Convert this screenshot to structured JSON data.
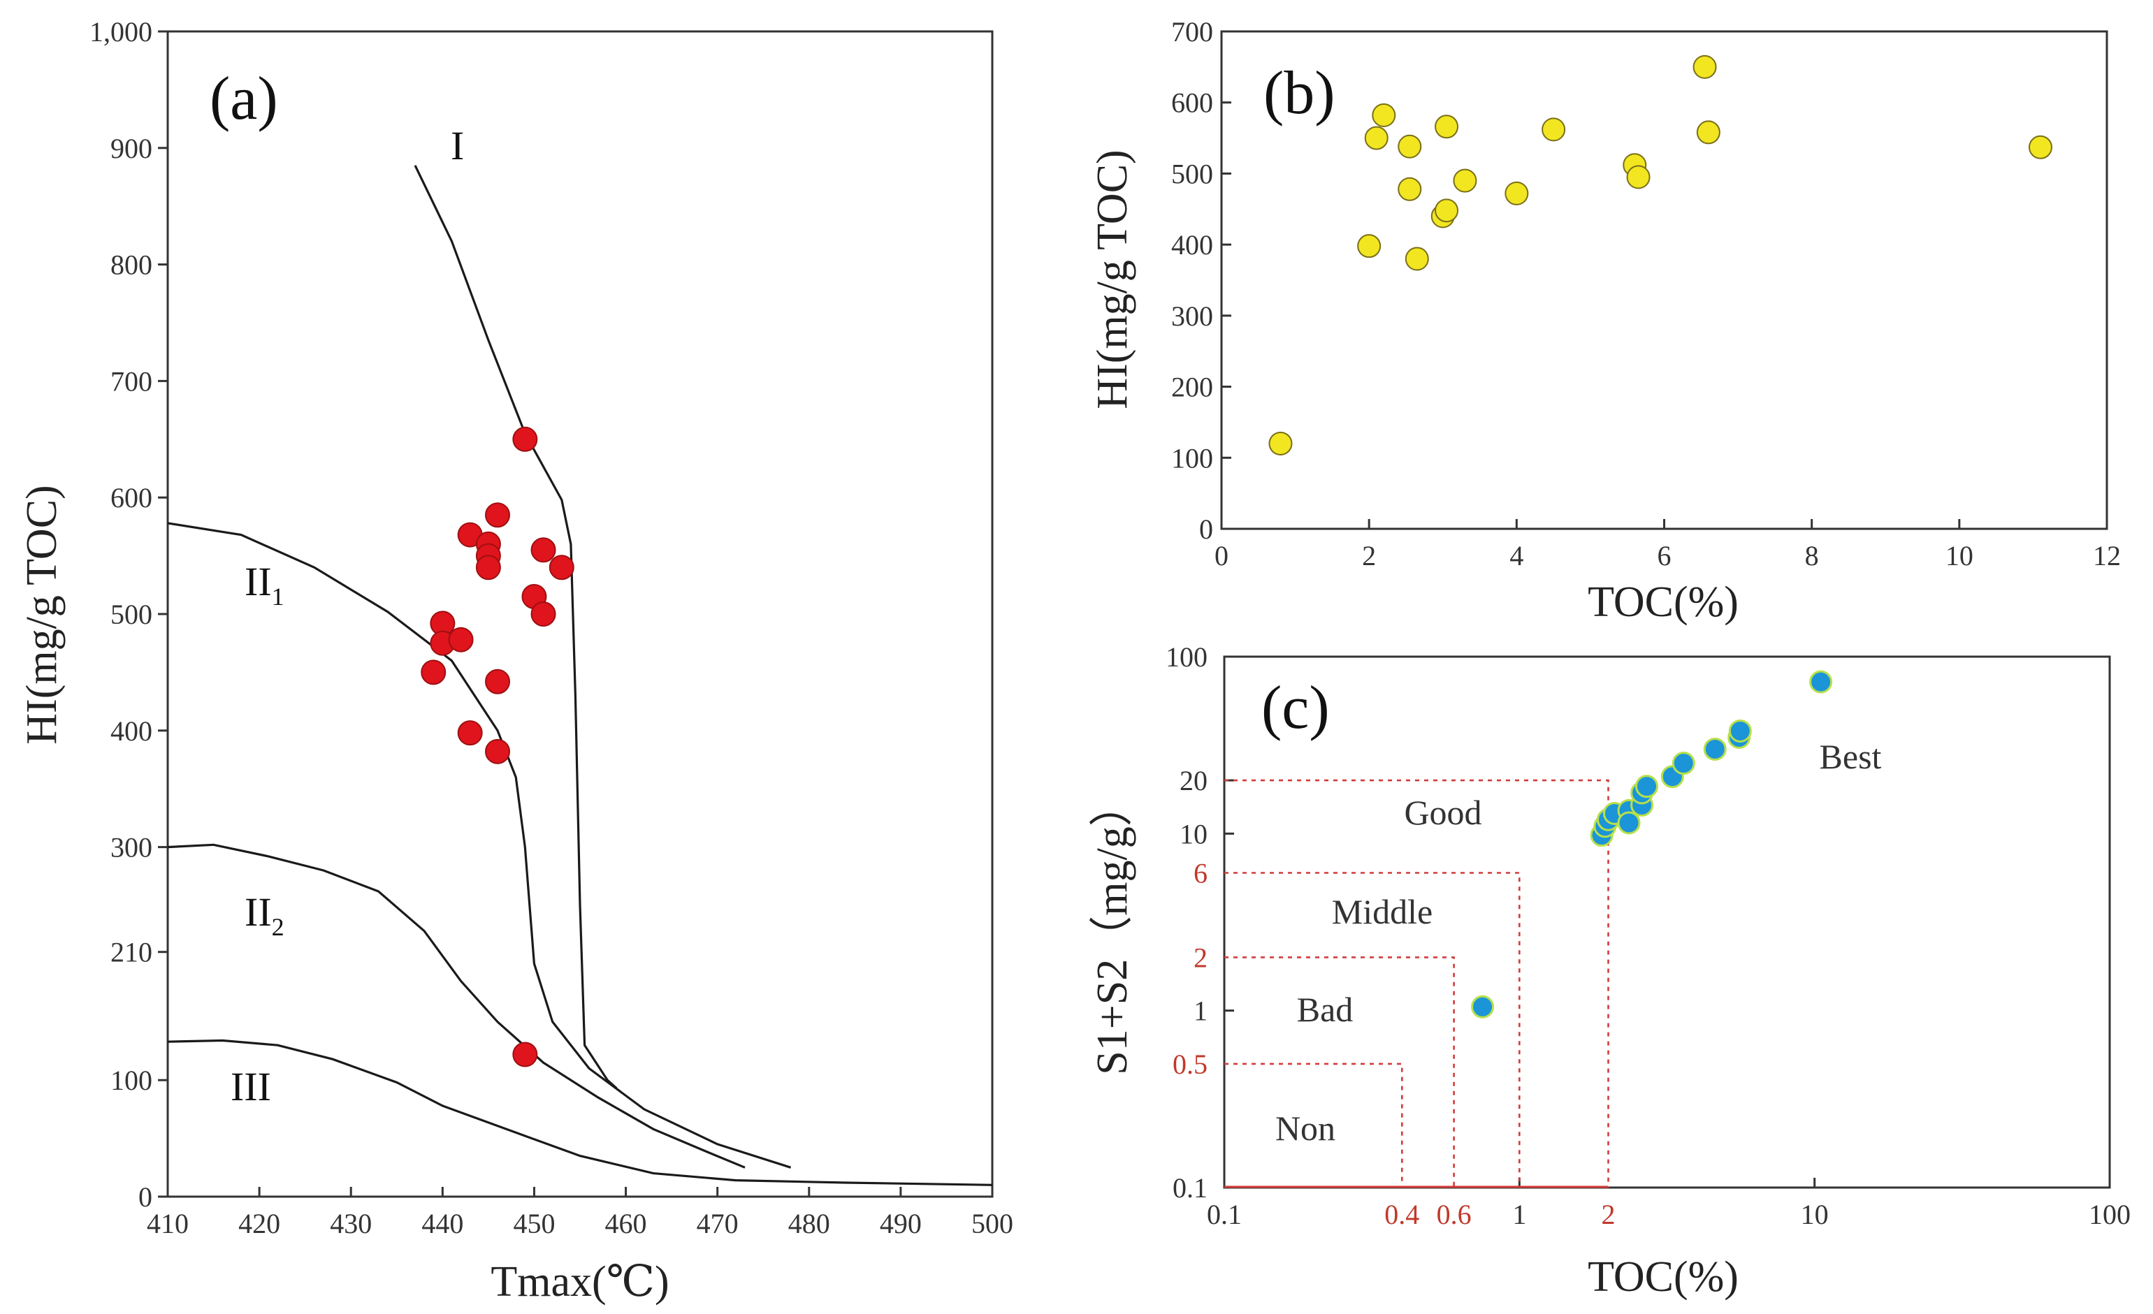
{
  "colors": {
    "markerA": "#e0141c",
    "markerB": "#f2e621",
    "markerC": "#1b95d8",
    "axis": "#333333",
    "guide": "#d23b3b"
  },
  "chart_data": [
    {
      "panel": "(a)",
      "type": "scatter",
      "xlabel": "Tmax(℃)",
      "ylabel": "HI(mg/g TOC)",
      "xlim": [
        410,
        500
      ],
      "ylim": [
        0,
        1000
      ],
      "xticks": [
        "410",
        "420",
        "430",
        "440",
        "450",
        "460",
        "470",
        "480",
        "490",
        "500"
      ],
      "yticks": [
        "0",
        "100",
        "210",
        "300",
        "400",
        "500",
        "600",
        "700",
        "800",
        "900",
        "1,000"
      ],
      "curve_labels": [
        {
          "label": "I",
          "sub": ""
        },
        {
          "label": "II",
          "sub": "1"
        },
        {
          "label": "II",
          "sub": "2"
        },
        {
          "label": "III",
          "sub": ""
        }
      ],
      "curves": [
        {
          "name": "I",
          "points": [
            [
              437,
              885
            ],
            [
              441,
              820
            ],
            [
              445,
              735
            ],
            [
              449,
              655
            ],
            [
              453,
              598
            ],
            [
              454,
              560
            ],
            [
              454.5,
              430
            ],
            [
              455,
              250
            ],
            [
              455.5,
              130
            ],
            [
              458,
              100
            ],
            [
              459,
              93
            ]
          ]
        },
        {
          "name": "II1",
          "points": [
            [
              410,
              578
            ],
            [
              418,
              568
            ],
            [
              426,
              540
            ],
            [
              434,
              502
            ],
            [
              441,
              460
            ],
            [
              446,
              400
            ],
            [
              448,
              360
            ],
            [
              449,
              300
            ],
            [
              450,
              200
            ],
            [
              452,
              150
            ],
            [
              456,
              110
            ],
            [
              462,
              75
            ],
            [
              470,
              45
            ],
            [
              478,
              25
            ]
          ]
        },
        {
          "name": "II2",
          "points": [
            [
              410,
              300
            ],
            [
              415,
              302
            ],
            [
              421,
              292
            ],
            [
              427,
              280
            ],
            [
              433,
              262
            ],
            [
              438,
              228
            ],
            [
              442,
              185
            ],
            [
              446,
              150
            ],
            [
              451,
              115
            ],
            [
              457,
              85
            ],
            [
              463,
              58
            ],
            [
              469,
              38
            ],
            [
              473,
              25
            ]
          ]
        },
        {
          "name": "III",
          "points": [
            [
              410,
              133
            ],
            [
              416,
              134
            ],
            [
              422,
              130
            ],
            [
              428,
              118
            ],
            [
              435,
              98
            ],
            [
              440,
              78
            ],
            [
              448,
              55
            ],
            [
              455,
              35
            ],
            [
              463,
              20
            ],
            [
              472,
              14
            ],
            [
              484,
              12
            ],
            [
              500,
              10
            ]
          ]
        }
      ],
      "points": [
        [
          449,
          650
        ],
        [
          443,
          568
        ],
        [
          446,
          585
        ],
        [
          445,
          560
        ],
        [
          445,
          550
        ],
        [
          445,
          540
        ],
        [
          451,
          555
        ],
        [
          453,
          540
        ],
        [
          450,
          515
        ],
        [
          451,
          500
        ],
        [
          440,
          492
        ],
        [
          440,
          475
        ],
        [
          442,
          478
        ],
        [
          439,
          450
        ],
        [
          446,
          442
        ],
        [
          443,
          398
        ],
        [
          446,
          382
        ],
        [
          449,
          122
        ]
      ]
    },
    {
      "panel": "(b)",
      "type": "scatter",
      "xlabel": "TOC(%)",
      "ylabel": "HI(mg/g TOC)",
      "xlim": [
        0,
        12
      ],
      "ylim": [
        0,
        700
      ],
      "xticks": [
        "0",
        "2",
        "4",
        "6",
        "8",
        "10",
        "12"
      ],
      "yticks": [
        "0",
        "100",
        "200",
        "300",
        "400",
        "500",
        "600",
        "700"
      ],
      "points": [
        [
          0.8,
          120
        ],
        [
          2.0,
          398
        ],
        [
          2.1,
          550
        ],
        [
          2.2,
          582
        ],
        [
          2.55,
          538
        ],
        [
          2.55,
          478
        ],
        [
          2.65,
          380
        ],
        [
          3.0,
          440
        ],
        [
          3.05,
          448
        ],
        [
          3.05,
          566
        ],
        [
          3.3,
          490
        ],
        [
          4.0,
          472
        ],
        [
          4.5,
          562
        ],
        [
          5.6,
          512
        ],
        [
          5.65,
          495
        ],
        [
          6.55,
          650
        ],
        [
          6.6,
          558
        ],
        [
          11.1,
          537
        ]
      ]
    },
    {
      "panel": "(c)",
      "type": "scatter",
      "xscale": "log",
      "yscale": "log",
      "xlabel": "TOC(%)",
      "ylabel": "S1+S2（mg/g）",
      "xlim": [
        0.1,
        100
      ],
      "ylim": [
        0.1,
        100
      ],
      "xticks": [
        "0.1",
        "1",
        "10",
        "100"
      ],
      "xticks_red": [
        "0.4",
        "0.6",
        "2"
      ],
      "yticks": [
        "0.1",
        "1",
        "10",
        "20",
        "100"
      ],
      "yticks_red": [
        "0.5",
        "2",
        "6"
      ],
      "grade_boxes": [
        {
          "label": "Non",
          "toc_max": 0.4,
          "s_max": 0.5
        },
        {
          "label": "Bad",
          "toc_max": 0.6,
          "s_max": 2
        },
        {
          "label": "Middle",
          "toc_max": 1,
          "s_max": 6
        },
        {
          "label": "Good",
          "toc_max": 2,
          "s_max": 20
        },
        {
          "label": "Best",
          "toc_max": null,
          "s_max": null
        }
      ],
      "points": [
        [
          0.75,
          1.05
        ],
        [
          1.9,
          9.8
        ],
        [
          1.95,
          11
        ],
        [
          2.0,
          12
        ],
        [
          2.1,
          13
        ],
        [
          2.35,
          13.5
        ],
        [
          2.35,
          11.5
        ],
        [
          2.6,
          14.5
        ],
        [
          2.6,
          17
        ],
        [
          2.7,
          18.5
        ],
        [
          3.3,
          21
        ],
        [
          3.6,
          25
        ],
        [
          4.6,
          30
        ],
        [
          5.55,
          35
        ],
        [
          5.6,
          38
        ],
        [
          10.5,
          72
        ]
      ]
    }
  ]
}
